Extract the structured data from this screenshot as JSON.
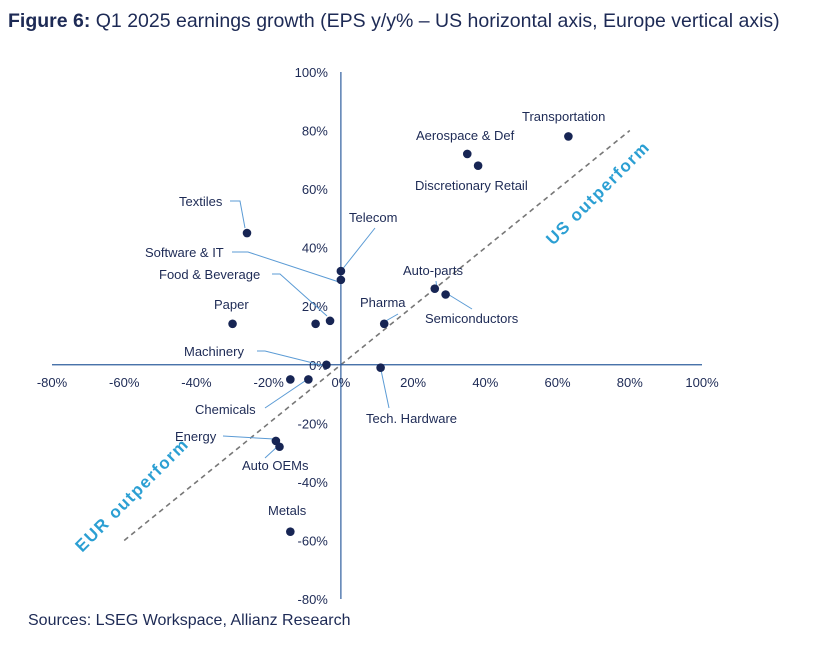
{
  "title_bold": "Figure 6:",
  "title_rest": " Q1 2025 earnings growth (EPS y/y% – US horizontal axis, Europe vertical axis)",
  "source": "Sources: LSEG Workspace, Allianz Research",
  "colors": {
    "axis": "#2f5f9e",
    "point": "#172554",
    "text": "#1d2a55",
    "region": "#2b9fd3",
    "diagonal": "#777777",
    "leader": "#5b9bd5"
  },
  "chart_data": {
    "type": "scatter",
    "xlim": [
      -80,
      100
    ],
    "ylim": [
      -80,
      100
    ],
    "x_ticks": [
      -80,
      -60,
      -40,
      -20,
      0,
      20,
      40,
      60,
      80,
      100
    ],
    "y_ticks": [
      -80,
      -60,
      -40,
      -20,
      0,
      20,
      40,
      60,
      80,
      100
    ],
    "x_tick_labels": [
      "-80%",
      "-60%",
      "-40%",
      "-20%",
      "0%",
      "20%",
      "40%",
      "60%",
      "80%",
      "100%"
    ],
    "y_tick_labels": [
      "-80%",
      "-60%",
      "-40%",
      "-20%",
      "0%",
      "20%",
      "40%",
      "60%",
      "80%",
      "100%"
    ],
    "grid": false,
    "diagonal": {
      "from": [
        -60,
        -60
      ],
      "to": [
        80,
        80
      ]
    },
    "region_labels": [
      "US outperform",
      "EUR outperform"
    ],
    "points": [
      {
        "name": "Transportation",
        "x": 63,
        "y": 78
      },
      {
        "name": "Aerospace & Def",
        "x": 35,
        "y": 72
      },
      {
        "name": "Discretionary Retail",
        "x": 38,
        "y": 68
      },
      {
        "name": "Textiles",
        "x": -26,
        "y": 45
      },
      {
        "name": "Telecom",
        "x": 0,
        "y": 32
      },
      {
        "name": "Software & IT",
        "x": 0,
        "y": 29
      },
      {
        "name": "Food & Beverage",
        "x": -3,
        "y": 15
      },
      {
        "name": "Auto-parts",
        "x": 26,
        "y": 26
      },
      {
        "name": "Semiconductors",
        "x": 29,
        "y": 24
      },
      {
        "name": "Pharma",
        "x": 12,
        "y": 14
      },
      {
        "name": "Paper",
        "x": -30,
        "y": 14
      },
      {
        "name": "Food & Beverage (2)",
        "x": -7,
        "y": 14
      },
      {
        "name": "Machinery",
        "x": -4,
        "y": 0
      },
      {
        "name": "Chemicals",
        "x": -9,
        "y": -5
      },
      {
        "name": "Chemicals (2)",
        "x": -14,
        "y": -5
      },
      {
        "name": "Tech. Hardware",
        "x": 11,
        "y": -1
      },
      {
        "name": "Energy",
        "x": -18,
        "y": -26
      },
      {
        "name": "Auto OEMs",
        "x": -17,
        "y": -28
      },
      {
        "name": "Metals",
        "x": -14,
        "y": -57
      }
    ],
    "labels": [
      "Transportation",
      "Aerospace & Def",
      "Discretionary Retail",
      "Textiles",
      "Telecom",
      "Software & IT",
      "Food & Beverage",
      "Auto-parts",
      "Semiconductors",
      "Pharma",
      "Paper",
      "Machinery",
      "Chemicals",
      "Tech. Hardware",
      "Energy",
      "Auto OEMs",
      "Metals"
    ]
  }
}
